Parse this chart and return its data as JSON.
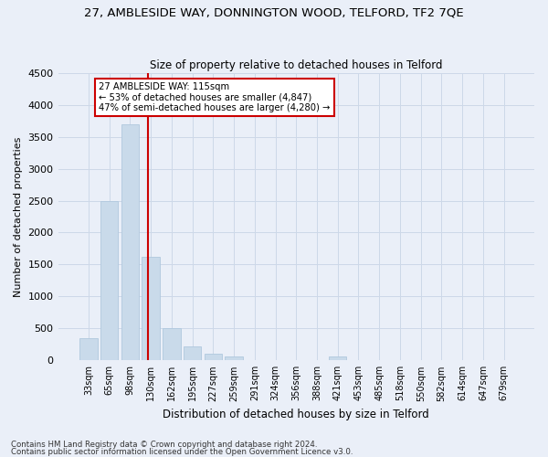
{
  "title1": "27, AMBLESIDE WAY, DONNINGTON WOOD, TELFORD, TF2 7QE",
  "title2": "Size of property relative to detached houses in Telford",
  "xlabel": "Distribution of detached houses by size in Telford",
  "ylabel": "Number of detached properties",
  "categories": [
    "33sqm",
    "65sqm",
    "98sqm",
    "130sqm",
    "162sqm",
    "195sqm",
    "227sqm",
    "259sqm",
    "291sqm",
    "324sqm",
    "356sqm",
    "388sqm",
    "421sqm",
    "453sqm",
    "485sqm",
    "518sqm",
    "550sqm",
    "582sqm",
    "614sqm",
    "647sqm",
    "679sqm"
  ],
  "values": [
    350,
    2500,
    3700,
    1620,
    500,
    220,
    100,
    60,
    0,
    0,
    0,
    0,
    60,
    0,
    0,
    0,
    0,
    0,
    0,
    0,
    0
  ],
  "bar_color": "#c9daea",
  "bar_edge_color": "#b0c8de",
  "vline_color": "#cc0000",
  "annotation_line1": "27 AMBLESIDE WAY: 115sqm",
  "annotation_line2": "← 53% of detached houses are smaller (4,847)",
  "annotation_line3": "47% of semi-detached houses are larger (4,280) →",
  "annotation_box_color": "white",
  "annotation_box_edge": "#cc0000",
  "ylim": [
    0,
    4500
  ],
  "yticks": [
    0,
    500,
    1000,
    1500,
    2000,
    2500,
    3000,
    3500,
    4000,
    4500
  ],
  "grid_color": "#cdd8e8",
  "footer1": "Contains HM Land Registry data © Crown copyright and database right 2024.",
  "footer2": "Contains public sector information licensed under the Open Government Licence v3.0.",
  "bg_color": "#eaeff8",
  "plot_bg_color": "#eaeff8",
  "title1_fontsize": 9.5,
  "title2_fontsize": 8.5
}
